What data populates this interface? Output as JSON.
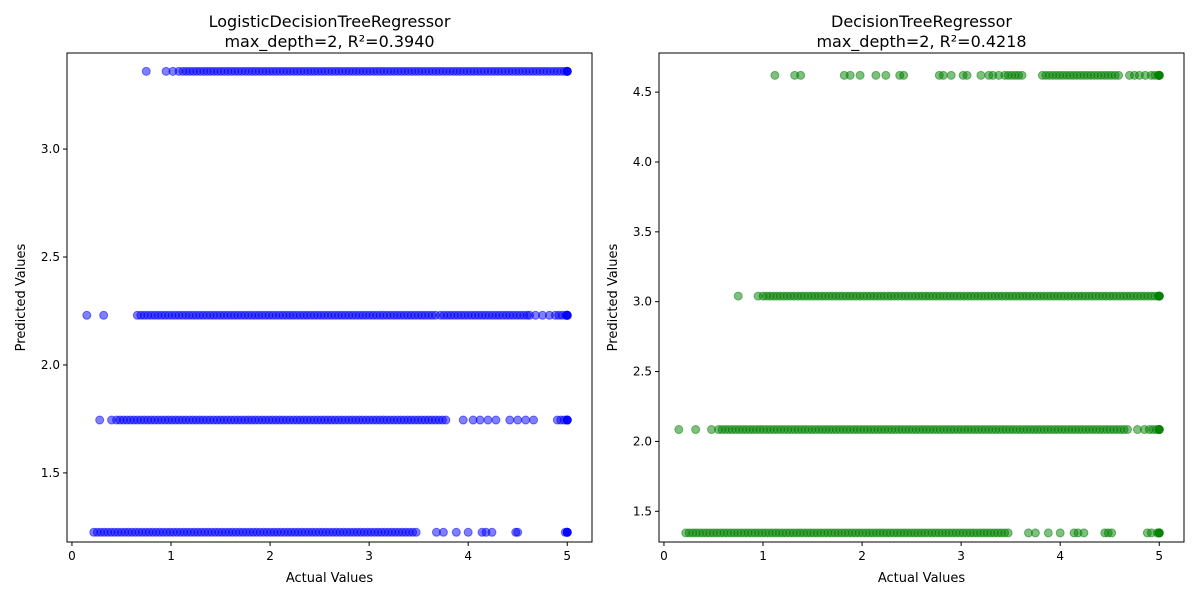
{
  "chart_data": [
    {
      "type": "scatter",
      "title_line1": "LogisticDecisionTreeRegressor",
      "title_line2": "max_depth=2, R²=0.3940",
      "xlabel": "Actual Values",
      "ylabel": "Predicted Values",
      "xlim": [
        -0.05,
        5.25
      ],
      "ylim": [
        1.18,
        3.445
      ],
      "xticks": [
        0,
        1,
        2,
        3,
        4,
        5
      ],
      "yticks": [
        1.5,
        2.0,
        2.5,
        3.0
      ],
      "grid": false,
      "color": "#0000ff",
      "opacity": 0.5,
      "series": [
        {
          "y": 3.36,
          "x_min": 0.75,
          "x_max": 5.0,
          "isolated": [
            0.75,
            0.95,
            1.02,
            1.08
          ],
          "dense_ranges": [
            [
              1.12,
              5.0
            ]
          ]
        },
        {
          "y": 2.23,
          "x_min": 0.15,
          "x_max": 5.0,
          "isolated": [
            0.15,
            0.32,
            4.62,
            4.68,
            4.75,
            4.82
          ],
          "dense_ranges": [
            [
              0.66,
              3.7
            ],
            [
              3.72,
              4.6
            ],
            [
              4.88,
              5.0
            ]
          ]
        },
        {
          "y": 1.745,
          "x_min": 0.28,
          "x_max": 5.0,
          "isolated": [
            0.28,
            0.4,
            3.95,
            4.05,
            4.12,
            4.2,
            4.28,
            4.42,
            4.5,
            4.58,
            4.66
          ],
          "dense_ranges": [
            [
              0.45,
              3.8
            ],
            [
              4.9,
              5.0
            ]
          ]
        },
        {
          "y": 1.225,
          "x_min": 0.22,
          "x_max": 5.0,
          "isolated": [
            3.68,
            3.75,
            3.88,
            4.0,
            4.14,
            4.18,
            4.24,
            4.48,
            4.5
          ],
          "dense_ranges": [
            [
              0.22,
              3.5
            ],
            [
              4.98,
              5.0
            ]
          ]
        }
      ]
    },
    {
      "type": "scatter",
      "title_line1": "DecisionTreeRegressor",
      "title_line2": "max_depth=2, R²=0.4218",
      "xlabel": "Actual Values",
      "ylabel": "Predicted Values",
      "xlim": [
        -0.05,
        5.25
      ],
      "ylim": [
        1.28,
        4.78
      ],
      "xticks": [
        0,
        1,
        2,
        3,
        4,
        5
      ],
      "yticks": [
        1.5,
        2.0,
        2.5,
        3.0,
        3.5,
        4.0,
        4.5
      ],
      "grid": false,
      "color": "#008000",
      "opacity": 0.5,
      "series": [
        {
          "y": 4.62,
          "x_min": 1.12,
          "x_max": 5.0,
          "isolated": [
            1.12,
            1.32,
            1.38,
            1.82,
            1.88,
            1.98,
            2.14,
            2.24,
            2.38,
            2.42,
            2.78,
            2.82,
            2.9,
            3.02,
            3.06,
            3.2,
            3.28,
            3.32,
            3.38,
            4.7,
            4.75,
            4.8,
            4.86
          ],
          "dense_ranges": [
            [
              3.44,
              3.62
            ],
            [
              3.82,
              4.62
            ],
            [
              4.92,
              5.0
            ]
          ]
        },
        {
          "y": 3.04,
          "x_min": 0.75,
          "x_max": 5.0,
          "isolated": [
            0.75,
            0.95
          ],
          "dense_ranges": [
            [
              1.0,
              5.0
            ]
          ]
        },
        {
          "y": 2.085,
          "x_min": 0.15,
          "x_max": 5.0,
          "isolated": [
            0.15,
            0.32,
            0.48,
            4.78,
            4.85
          ],
          "dense_ranges": [
            [
              0.55,
              4.7
            ],
            [
              4.9,
              5.0
            ]
          ]
        },
        {
          "y": 1.345,
          "x_min": 0.22,
          "x_max": 5.0,
          "isolated": [
            3.68,
            3.75,
            3.88,
            4.0,
            4.14,
            4.18,
            4.24,
            4.88,
            4.92
          ],
          "dense_ranges": [
            [
              0.22,
              3.5
            ],
            [
              4.45,
              4.52
            ],
            [
              4.98,
              5.0
            ]
          ]
        }
      ]
    }
  ]
}
